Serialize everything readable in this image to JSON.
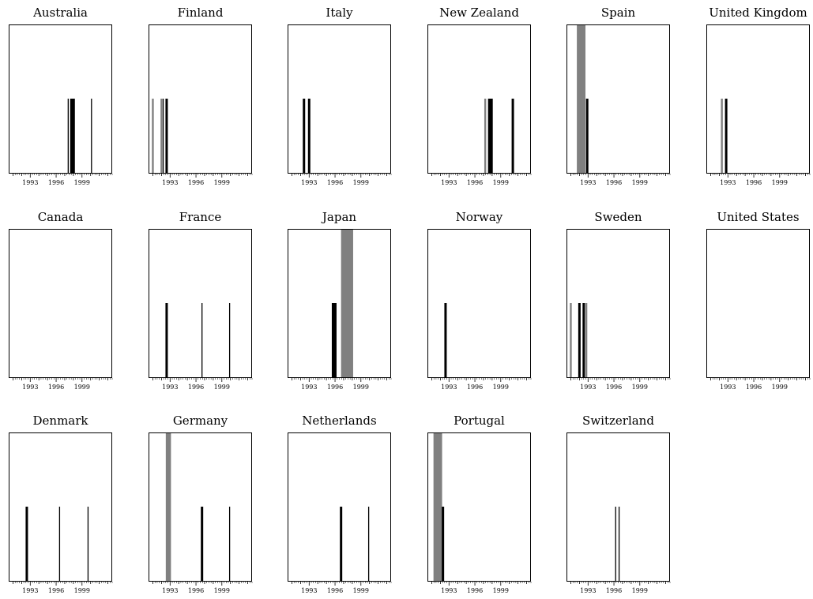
{
  "chart_data": {
    "type": "bar",
    "x_range": [
      1990.5,
      2002.5
    ],
    "x_ticks": [
      1993,
      1996,
      1999
    ],
    "colors": {
      "event": "#000000",
      "shaded_period": "#808080",
      "frame": "#000000"
    },
    "panels": [
      {
        "title": "Australia",
        "shaded": [],
        "events": [
          {
            "year": 1997.4,
            "strength": "thin"
          },
          {
            "year": 1997.9,
            "strength": "thick"
          },
          {
            "year": 2000.1,
            "strength": "thin"
          }
        ]
      },
      {
        "title": "Finland",
        "shaded": [],
        "gray_lines": [
          1991.0,
          1992.0
        ],
        "events": [
          {
            "year": 1992.2,
            "strength": "thin"
          },
          {
            "year": 1992.6,
            "strength": "medium"
          }
        ]
      },
      {
        "title": "Italy",
        "shaded": [],
        "events": [
          {
            "year": 1992.4,
            "strength": "medium"
          },
          {
            "year": 1993.0,
            "strength": "medium"
          }
        ]
      },
      {
        "title": "New Zealand",
        "shaded": [],
        "gray_lines": [
          1997.2
        ],
        "events": [
          {
            "year": 1997.8,
            "strength": "thick"
          },
          {
            "year": 2000.4,
            "strength": "medium"
          }
        ]
      },
      {
        "title": "Spain",
        "shaded": [
          [
            1991.7,
            1992.7
          ]
        ],
        "events": [
          {
            "year": 1992.9,
            "strength": "medium"
          }
        ]
      },
      {
        "title": "United Kingdom",
        "shaded": [],
        "gray_lines": [
          1992.3
        ],
        "events": [
          {
            "year": 1992.8,
            "strength": "medium"
          }
        ]
      },
      {
        "title": "Canada",
        "shaded": [],
        "events": []
      },
      {
        "title": "France",
        "shaded": [],
        "events": [
          {
            "year": 1992.6,
            "strength": "medium"
          },
          {
            "year": 1996.7,
            "strength": "thin"
          },
          {
            "year": 1999.9,
            "strength": "thin"
          }
        ]
      },
      {
        "title": "Japan",
        "shaded": [
          [
            1996.7,
            1998.1
          ]
        ],
        "events": [
          {
            "year": 1995.9,
            "strength": "thick"
          }
        ]
      },
      {
        "title": "Norway",
        "shaded": [],
        "events": [
          {
            "year": 1992.6,
            "strength": "medium"
          }
        ]
      },
      {
        "title": "Sweden",
        "shaded": [],
        "gray_lines": [
          1991.0,
          1992.8
        ],
        "events": [
          {
            "year": 1992.0,
            "strength": "medium"
          },
          {
            "year": 1992.5,
            "strength": "medium"
          }
        ]
      },
      {
        "title": "United States",
        "shaded": [],
        "events": []
      },
      {
        "title": "Denmark",
        "shaded": [],
        "events": [
          {
            "year": 1992.6,
            "strength": "medium"
          },
          {
            "year": 1996.4,
            "strength": "thin"
          },
          {
            "year": 1999.7,
            "strength": "thin"
          }
        ]
      },
      {
        "title": "Germany",
        "shaded": [
          [
            1992.5,
            1993.1
          ]
        ],
        "events": [
          {
            "year": 1996.7,
            "strength": "medium"
          },
          {
            "year": 1999.9,
            "strength": "thin"
          }
        ]
      },
      {
        "title": "Netherlands",
        "shaded": [],
        "events": [
          {
            "year": 1996.7,
            "strength": "medium"
          },
          {
            "year": 1999.9,
            "strength": "thin"
          }
        ]
      },
      {
        "title": "Portugal",
        "shaded": [
          [
            1991.2,
            1992.2
          ]
        ],
        "events": [
          {
            "year": 1992.3,
            "strength": "medium"
          }
        ]
      },
      {
        "title": "Switzerland",
        "shaded": [],
        "events": [
          {
            "year": 1996.2,
            "strength": "thin"
          },
          {
            "year": 1996.6,
            "strength": "thin"
          }
        ]
      }
    ]
  }
}
